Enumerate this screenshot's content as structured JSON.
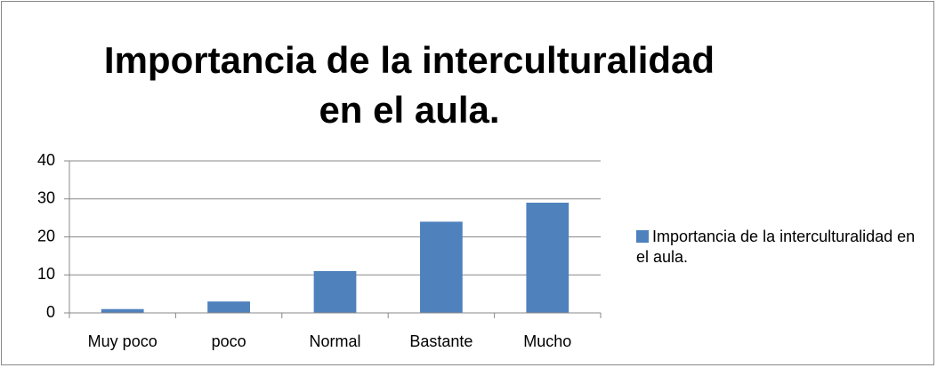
{
  "chart_data": {
    "type": "bar",
    "title": "Importancia de la interculturalidad en el aula.",
    "categories": [
      "Muy poco",
      "poco",
      "Normal",
      "Bastante",
      "Mucho"
    ],
    "series": [
      {
        "name": "Importancia de la interculturalidad en el aula.",
        "color": "#4f81bd",
        "values": [
          1,
          3,
          11,
          24,
          29
        ]
      }
    ],
    "ylim": [
      0,
      40
    ],
    "yticks": [
      0,
      10,
      20,
      30,
      40
    ],
    "grid": true,
    "legend": "right"
  }
}
